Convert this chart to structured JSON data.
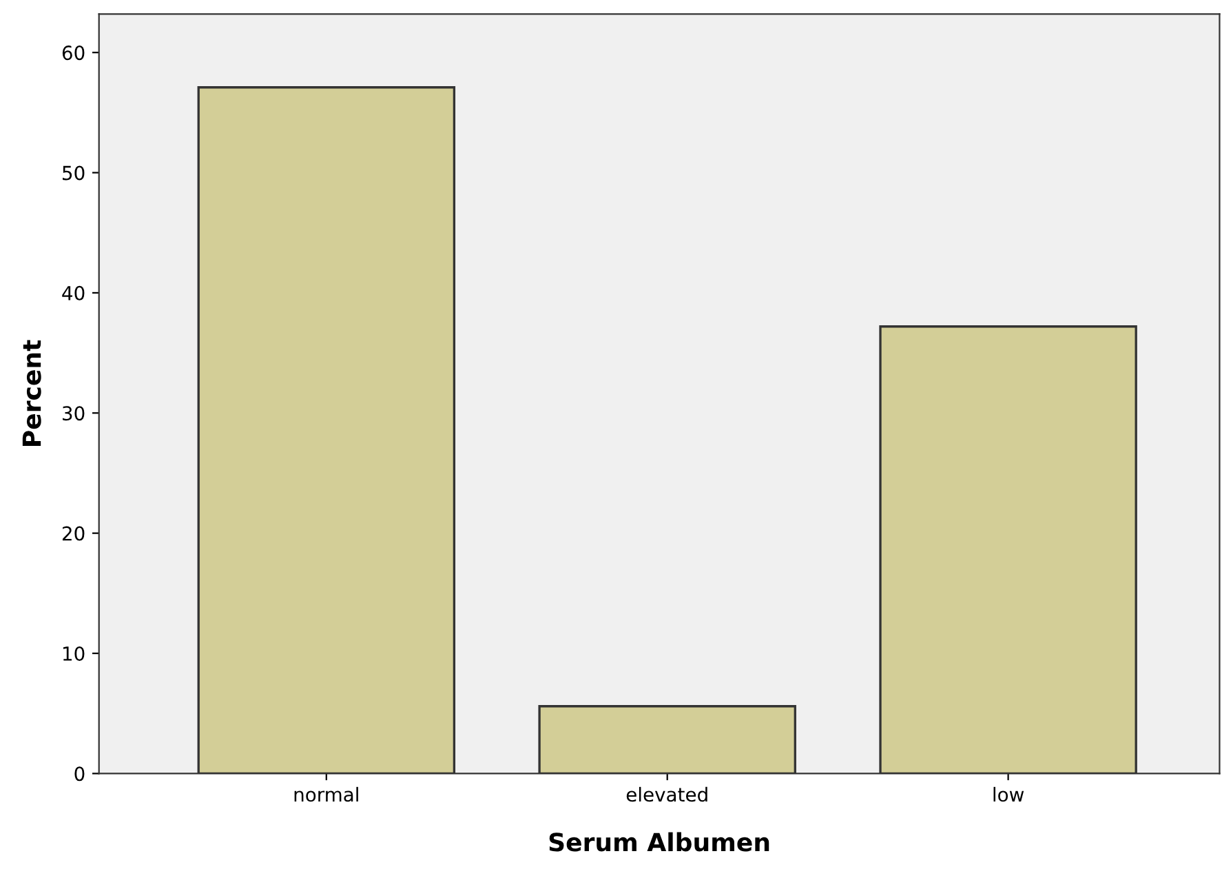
{
  "chart_data": {
    "type": "bar",
    "xlabel": "Serum Albumen",
    "ylabel": "Percent",
    "categories": [
      "normal",
      "elevated",
      "low"
    ],
    "values": [
      57.1,
      5.6,
      37.2
    ],
    "color": "#d3ce97",
    "ylim": [
      0,
      63.2
    ],
    "yticks": [
      0,
      10,
      20,
      30,
      40,
      50,
      60
    ],
    "grid": false
  }
}
